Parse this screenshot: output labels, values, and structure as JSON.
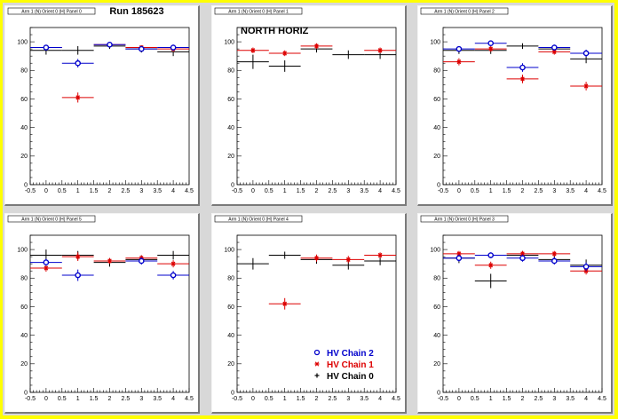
{
  "colors": {
    "background": "#ffff00",
    "frame": "#d8d8d8",
    "chain0": "#000000",
    "chain1": "#dd0000",
    "chain2": "#0000cc"
  },
  "run_label": "Run 185623",
  "north_label": "NORTH HORIZ",
  "legend": [
    {
      "label": "HV Chain 2",
      "series": "chain2",
      "marker": "circle",
      "color": "#0000cc"
    },
    {
      "label": "HV Chain 1",
      "series": "chain1",
      "marker": "star",
      "color": "#dd0000"
    },
    {
      "label": "HV Chain 0",
      "series": "chain0",
      "marker": "cross",
      "color": "#000000"
    }
  ],
  "chart_data": [
    {
      "type": "scatter",
      "title": "Arm 1 (N) Orient 0 (H) Panel 0",
      "xlim": [
        -0.5,
        4.5
      ],
      "ylim": [
        0,
        110
      ],
      "xticks": [
        "-0.5",
        "0",
        "0.5",
        "1",
        "1.5",
        "2",
        "2.5",
        "3",
        "3.5",
        "4",
        "4.5"
      ],
      "yticks": [
        "0",
        "20",
        "40",
        "60",
        "80",
        "100"
      ],
      "series": [
        {
          "name": "HV Chain 2",
          "x": [
            0,
            1,
            2,
            3,
            4
          ],
          "y": [
            96,
            85,
            98,
            95,
            96
          ],
          "yerr": [
            1.5,
            3,
            1,
            1.5,
            2
          ]
        },
        {
          "name": "HV Chain 1",
          "x": [
            0,
            1,
            2,
            3,
            4
          ],
          "y": [
            96,
            61,
            98,
            96,
            95
          ],
          "yerr": [
            1.5,
            3.5,
            1,
            1.5,
            2
          ]
        },
        {
          "name": "HV Chain 0",
          "x": [
            0,
            1,
            2,
            3,
            4
          ],
          "y": [
            94,
            94,
            97,
            95,
            93
          ],
          "yerr": [
            3,
            3,
            2,
            2.5,
            3
          ]
        }
      ]
    },
    {
      "type": "scatter",
      "title": "Arm 1 (N) Orient 0 (H) Panel 1",
      "xlim": [
        -0.5,
        4.5
      ],
      "ylim": [
        0,
        110
      ],
      "xticks": [
        "-0.5",
        "0",
        "0.5",
        "1",
        "1.5",
        "2",
        "2.5",
        "3",
        "3.5",
        "4",
        "4.5"
      ],
      "yticks": [
        "0",
        "20",
        "40",
        "60",
        "80",
        "100"
      ],
      "series": [
        {
          "name": "HV Chain 1",
          "x": [
            0,
            1,
            2,
            4
          ],
          "y": [
            94,
            92,
            97,
            94
          ],
          "yerr": [
            2,
            2,
            2,
            2
          ]
        },
        {
          "name": "HV Chain 0",
          "x": [
            0,
            1,
            2,
            3,
            4
          ],
          "y": [
            86,
            83,
            95,
            91,
            91
          ],
          "yerr": [
            5,
            4,
            2.5,
            3,
            3
          ]
        }
      ]
    },
    {
      "type": "scatter",
      "title": "Arm 1 (N) Orient 0 (H) Panel 2",
      "xlim": [
        -0.5,
        4.5
      ],
      "ylim": [
        0,
        110
      ],
      "xticks": [
        "-0.5",
        "0",
        "0.5",
        "1",
        "1.5",
        "2",
        "2.5",
        "3",
        "3.5",
        "4",
        "4.5"
      ],
      "yticks": [
        "0",
        "20",
        "40",
        "60",
        "80",
        "100"
      ],
      "series": [
        {
          "name": "HV Chain 2",
          "x": [
            0,
            1,
            2,
            3,
            4
          ],
          "y": [
            95,
            99,
            82,
            96,
            92
          ],
          "yerr": [
            1.5,
            1,
            3,
            2,
            2.5
          ]
        },
        {
          "name": "HV Chain 1",
          "x": [
            0,
            1,
            2,
            3,
            4
          ],
          "y": [
            86,
            95,
            74,
            93,
            69
          ],
          "yerr": [
            2.5,
            2,
            3,
            2,
            3
          ]
        },
        {
          "name": "HV Chain 0",
          "x": [
            0,
            1,
            2,
            3,
            4
          ],
          "y": [
            94,
            94,
            97,
            95,
            88
          ],
          "yerr": [
            2.5,
            2.5,
            2,
            2.5,
            3
          ]
        }
      ]
    },
    {
      "type": "scatter",
      "title": "Arm 1 (N) Orient 0 (H) Panel 5",
      "xlim": [
        -0.5,
        4.5
      ],
      "ylim": [
        0,
        110
      ],
      "xticks": [
        "-0.5",
        "0",
        "0.5",
        "1",
        "1.5",
        "2",
        "2.5",
        "3",
        "3.5",
        "4",
        "4.5"
      ],
      "yticks": [
        "0",
        "20",
        "40",
        "60",
        "80",
        "100"
      ],
      "series": [
        {
          "name": "HV Chain 2",
          "x": [
            0,
            1,
            3,
            4
          ],
          "y": [
            91,
            82,
            92,
            82
          ],
          "yerr": [
            2.5,
            4,
            2.5,
            3
          ]
        },
        {
          "name": "HV Chain 1",
          "x": [
            0,
            1,
            2,
            3,
            4
          ],
          "y": [
            87,
            95,
            92,
            94,
            90
          ],
          "yerr": [
            2.5,
            3,
            2,
            2,
            2.5
          ]
        },
        {
          "name": "HV Chain 0",
          "x": [
            0,
            1,
            2,
            3,
            4
          ],
          "y": [
            96,
            96,
            91,
            93,
            96
          ],
          "yerr": [
            4,
            3,
            3,
            3,
            3
          ]
        }
      ]
    },
    {
      "type": "scatter",
      "title": "Arm 1 (N) Orient 0 (H) Panel 4",
      "xlim": [
        -0.5,
        4.5
      ],
      "ylim": [
        0,
        110
      ],
      "xticks": [
        "-0.5",
        "0",
        "0.5",
        "1",
        "1.5",
        "2",
        "2.5",
        "3",
        "3.5",
        "4",
        "4.5"
      ],
      "yticks": [
        "0",
        "20",
        "40",
        "60",
        "80",
        "100"
      ],
      "series": [
        {
          "name": "HV Chain 1",
          "x": [
            1,
            2,
            3,
            4
          ],
          "y": [
            62,
            94,
            93,
            96
          ],
          "yerr": [
            4,
            2.5,
            2.5,
            2
          ]
        },
        {
          "name": "HV Chain 0",
          "x": [
            0,
            1,
            2,
            3,
            4
          ],
          "y": [
            90,
            96,
            93,
            89,
            92
          ],
          "yerr": [
            4,
            2.5,
            3,
            3,
            3
          ]
        }
      ]
    },
    {
      "type": "scatter",
      "title": "Arm 1 (N) Orient 0 (H) Panel 3",
      "xlim": [
        -0.5,
        4.5
      ],
      "ylim": [
        0,
        110
      ],
      "xticks": [
        "-0.5",
        "0",
        "0.5",
        "1",
        "1.5",
        "2",
        "2.5",
        "3",
        "3.5",
        "4",
        "4.5"
      ],
      "yticks": [
        "0",
        "20",
        "40",
        "60",
        "80",
        "100"
      ],
      "series": [
        {
          "name": "HV Chain 2",
          "x": [
            0,
            1,
            2,
            3,
            4
          ],
          "y": [
            94,
            96,
            94,
            92,
            88
          ],
          "yerr": [
            2.5,
            2,
            2.5,
            2.5,
            3
          ]
        },
        {
          "name": "HV Chain 1",
          "x": [
            0,
            1,
            2,
            3,
            4
          ],
          "y": [
            97,
            89,
            97,
            97,
            85
          ],
          "yerr": [
            2,
            2.5,
            2,
            2,
            2.5
          ]
        },
        {
          "name": "HV Chain 0",
          "x": [
            0,
            1,
            2,
            3,
            4
          ],
          "y": [
            94,
            78,
            96,
            93,
            89
          ],
          "yerr": [
            3.5,
            5,
            3,
            3,
            4
          ]
        }
      ]
    }
  ]
}
